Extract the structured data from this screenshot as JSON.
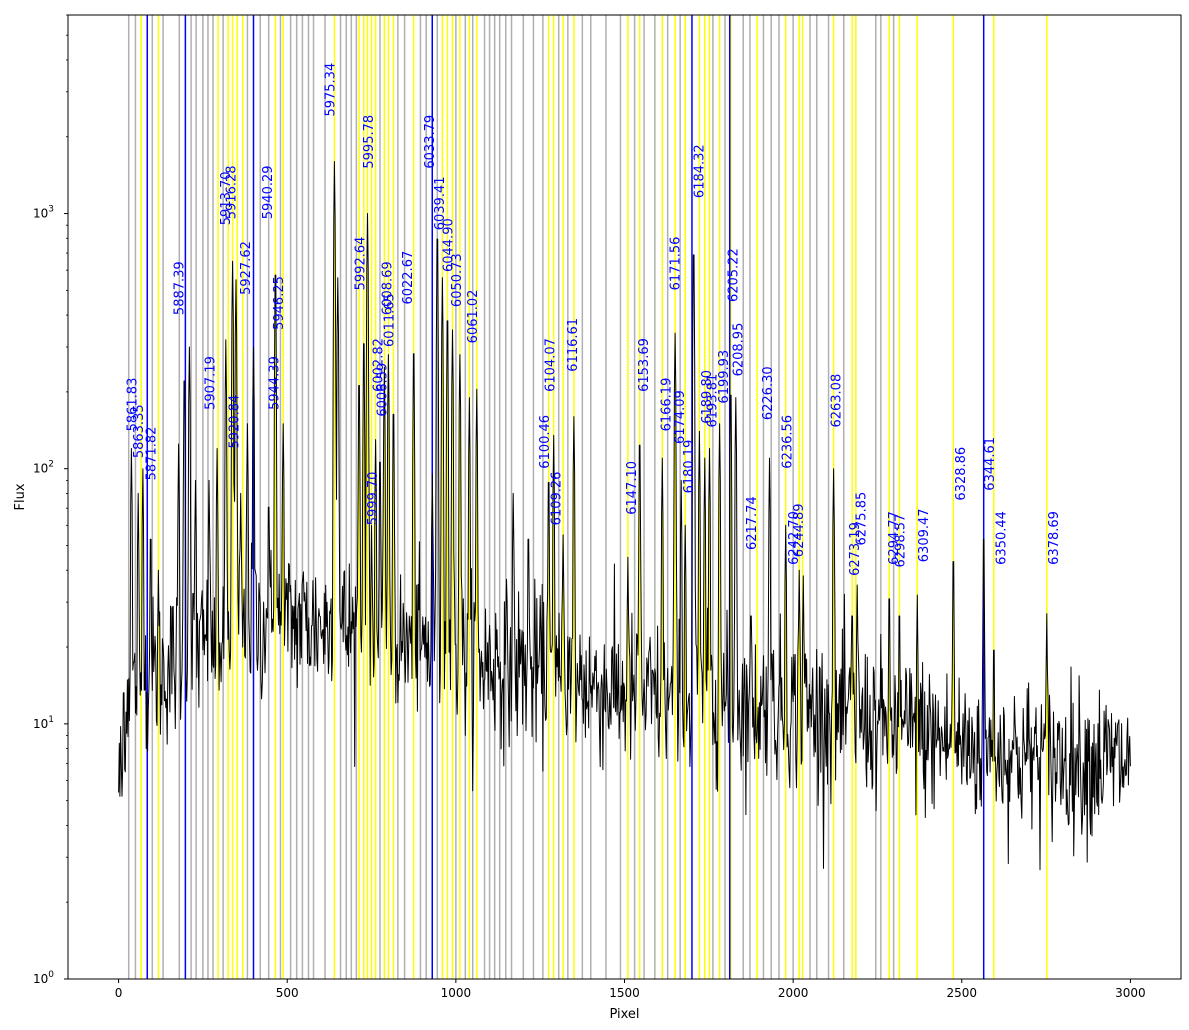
{
  "chart_data": {
    "type": "line",
    "title": "",
    "xlabel": "Pixel",
    "ylabel": "Flux",
    "xlim": [
      -150,
      3150
    ],
    "ylim": [
      1,
      6000
    ],
    "yscale": "log",
    "x_ticks": [
      0,
      500,
      1000,
      1500,
      2000,
      2500,
      3000
    ],
    "y_ticks": [
      {
        "value": 1,
        "label": "10",
        "exp": "0"
      },
      {
        "value": 10,
        "label": "10",
        "exp": "1"
      },
      {
        "value": 100,
        "label": "10",
        "exp": "2"
      },
      {
        "value": 1000,
        "label": "10",
        "exp": "3"
      }
    ],
    "grid": false,
    "legend": "none",
    "colors": {
      "spectrum": "#000000",
      "reference_line": "#0000ff",
      "detected_line": "#ffff00",
      "candidate_line": "#b0b0b0",
      "label": "#0000ff"
    },
    "reference_lines": [
      85,
      198,
      400,
      930,
      1700,
      1812,
      2565
    ],
    "detected_lines": [
      67,
      118,
      295,
      325,
      338,
      352,
      368,
      465,
      488,
      640,
      713,
      727,
      738,
      750,
      762,
      788,
      800,
      815,
      875,
      960,
      975,
      990,
      1012,
      1040,
      1062,
      1275,
      1290,
      1318,
      1350,
      1510,
      1545,
      1612,
      1650,
      1680,
      1722,
      1738,
      1752,
      1782,
      1815,
      1893,
      1978,
      2018,
      2028,
      2120,
      2175,
      2186,
      2285,
      2315,
      2368,
      2475,
      2595,
      2752
    ],
    "candidate_lines": [
      30,
      50,
      100,
      132,
      180,
      215,
      230,
      250,
      265,
      280,
      310,
      382,
      420,
      445,
      480,
      510,
      528,
      545,
      563,
      578,
      612,
      658,
      675,
      690,
      705,
      775,
      828,
      848,
      895,
      912,
      945,
      1000,
      1028,
      1050,
      1085,
      1100,
      1115,
      1130,
      1148,
      1165,
      1200,
      1230,
      1258,
      1305,
      1332,
      1375,
      1400,
      1445,
      1488,
      1530,
      1558,
      1590,
      1628,
      1665,
      1762,
      1798,
      1852,
      1872,
      1912,
      1935,
      1958,
      2000,
      2050,
      2070,
      2105,
      2150,
      2245,
      2260,
      2298
    ],
    "line_labels": [
      {
        "x": 38,
        "y": 140,
        "text": "5861.83"
      },
      {
        "x": 58,
        "y": 110,
        "text": "5863.35"
      },
      {
        "x": 95,
        "y": 90,
        "text": "5871.82"
      },
      {
        "x": 178,
        "y": 400,
        "text": "5887.39"
      },
      {
        "x": 270,
        "y": 170,
        "text": "5907.19"
      },
      {
        "x": 315,
        "y": 900,
        "text": "5913.70"
      },
      {
        "x": 332,
        "y": 950,
        "text": "5916.28"
      },
      {
        "x": 340,
        "y": 120,
        "text": "5920.84"
      },
      {
        "x": 375,
        "y": 480,
        "text": "5927.62"
      },
      {
        "x": 440,
        "y": 950,
        "text": "5940.29"
      },
      {
        "x": 460,
        "y": 170,
        "text": "5944.39"
      },
      {
        "x": 472,
        "y": 350,
        "text": "5946.25"
      },
      {
        "x": 625,
        "y": 2400,
        "text": "5975.34"
      },
      {
        "x": 715,
        "y": 500,
        "text": "5992.64"
      },
      {
        "x": 740,
        "y": 1500,
        "text": "5995.78"
      },
      {
        "x": 752,
        "y": 60,
        "text": "5999.70"
      },
      {
        "x": 768,
        "y": 200,
        "text": "6002.82"
      },
      {
        "x": 780,
        "y": 160,
        "text": "6006.59"
      },
      {
        "x": 795,
        "y": 400,
        "text": "6008.69"
      },
      {
        "x": 800,
        "y": 300,
        "text": "6011.65"
      },
      {
        "x": 855,
        "y": 440,
        "text": "6022.67"
      },
      {
        "x": 920,
        "y": 1500,
        "text": "6033.79"
      },
      {
        "x": 950,
        "y": 860,
        "text": "6039.41"
      },
      {
        "x": 975,
        "y": 590,
        "text": "6044.90"
      },
      {
        "x": 1000,
        "y": 430,
        "text": "6050.73"
      },
      {
        "x": 1048,
        "y": 310,
        "text": "6061.02"
      },
      {
        "x": 1262,
        "y": 100,
        "text": "6100.46"
      },
      {
        "x": 1278,
        "y": 200,
        "text": "6104.07"
      },
      {
        "x": 1295,
        "y": 60,
        "text": "6109.26"
      },
      {
        "x": 1345,
        "y": 240,
        "text": "6116.61"
      },
      {
        "x": 1520,
        "y": 66,
        "text": "6147.10"
      },
      {
        "x": 1555,
        "y": 200,
        "text": "6153.69"
      },
      {
        "x": 1622,
        "y": 140,
        "text": "6166.19"
      },
      {
        "x": 1648,
        "y": 500,
        "text": "6171.56"
      },
      {
        "x": 1662,
        "y": 125,
        "text": "6174.09"
      },
      {
        "x": 1688,
        "y": 80,
        "text": "6180.19"
      },
      {
        "x": 1720,
        "y": 1150,
        "text": "6184.32"
      },
      {
        "x": 1742,
        "y": 150,
        "text": "6189.80"
      },
      {
        "x": 1758,
        "y": 145,
        "text": "6193.81"
      },
      {
        "x": 1792,
        "y": 180,
        "text": "6199.93"
      },
      {
        "x": 1820,
        "y": 450,
        "text": "6205.22"
      },
      {
        "x": 1835,
        "y": 230,
        "text": "6208.95"
      },
      {
        "x": 1875,
        "y": 48,
        "text": "6217.74"
      },
      {
        "x": 1922,
        "y": 155,
        "text": "6226.30"
      },
      {
        "x": 1980,
        "y": 100,
        "text": "6236.56"
      },
      {
        "x": 2000,
        "y": 42,
        "text": "6242.70"
      },
      {
        "x": 2015,
        "y": 45,
        "text": "6244.89"
      },
      {
        "x": 2125,
        "y": 145,
        "text": "6263.08"
      },
      {
        "x": 2180,
        "y": 38,
        "text": "6273.19"
      },
      {
        "x": 2200,
        "y": 50,
        "text": "6275.85"
      },
      {
        "x": 2296,
        "y": 42,
        "text": "6294.77"
      },
      {
        "x": 2315,
        "y": 41,
        "text": "6298.57"
      },
      {
        "x": 2385,
        "y": 43,
        "text": "6309.47"
      },
      {
        "x": 2495,
        "y": 75,
        "text": "6328.86"
      },
      {
        "x": 2580,
        "y": 82,
        "text": "6344.61"
      },
      {
        "x": 2615,
        "y": 42,
        "text": "6350.44"
      },
      {
        "x": 2770,
        "y": 42,
        "text": "6378.69"
      }
    ],
    "peaks": [
      {
        "x": 15,
        "y": 15
      },
      {
        "x": 38,
        "y": 120
      },
      {
        "x": 58,
        "y": 80
      },
      {
        "x": 72,
        "y": 100
      },
      {
        "x": 95,
        "y": 60
      },
      {
        "x": 118,
        "y": 40
      },
      {
        "x": 178,
        "y": 125
      },
      {
        "x": 195,
        "y": 250
      },
      {
        "x": 210,
        "y": 300
      },
      {
        "x": 228,
        "y": 90
      },
      {
        "x": 268,
        "y": 90
      },
      {
        "x": 292,
        "y": 120
      },
      {
        "x": 318,
        "y": 320
      },
      {
        "x": 338,
        "y": 650
      },
      {
        "x": 348,
        "y": 550
      },
      {
        "x": 362,
        "y": 80
      },
      {
        "x": 382,
        "y": 150
      },
      {
        "x": 400,
        "y": 300
      },
      {
        "x": 445,
        "y": 80
      },
      {
        "x": 465,
        "y": 650
      },
      {
        "x": 488,
        "y": 150
      },
      {
        "x": 545,
        "y": 40
      },
      {
        "x": 640,
        "y": 1600
      },
      {
        "x": 650,
        "y": 560
      },
      {
        "x": 713,
        "y": 240
      },
      {
        "x": 727,
        "y": 350
      },
      {
        "x": 738,
        "y": 1000
      },
      {
        "x": 750,
        "y": 60
      },
      {
        "x": 762,
        "y": 130
      },
      {
        "x": 775,
        "y": 120
      },
      {
        "x": 788,
        "y": 250
      },
      {
        "x": 800,
        "y": 280
      },
      {
        "x": 815,
        "y": 185
      },
      {
        "x": 875,
        "y": 320
      },
      {
        "x": 930,
        "y": 95
      },
      {
        "x": 945,
        "y": 900
      },
      {
        "x": 960,
        "y": 560
      },
      {
        "x": 975,
        "y": 430
      },
      {
        "x": 990,
        "y": 350
      },
      {
        "x": 1012,
        "y": 280
      },
      {
        "x": 1040,
        "y": 190
      },
      {
        "x": 1062,
        "y": 205
      },
      {
        "x": 1170,
        "y": 80
      },
      {
        "x": 1215,
        "y": 60
      },
      {
        "x": 1275,
        "y": 100
      },
      {
        "x": 1290,
        "y": 135
      },
      {
        "x": 1318,
        "y": 55
      },
      {
        "x": 1350,
        "y": 160
      },
      {
        "x": 1510,
        "y": 45
      },
      {
        "x": 1545,
        "y": 140
      },
      {
        "x": 1612,
        "y": 110
      },
      {
        "x": 1650,
        "y": 340
      },
      {
        "x": 1668,
        "y": 90
      },
      {
        "x": 1680,
        "y": 60
      },
      {
        "x": 1705,
        "y": 780
      },
      {
        "x": 1722,
        "y": 140
      },
      {
        "x": 1738,
        "y": 110
      },
      {
        "x": 1752,
        "y": 120
      },
      {
        "x": 1782,
        "y": 150
      },
      {
        "x": 1815,
        "y": 220
      },
      {
        "x": 1830,
        "y": 190
      },
      {
        "x": 1875,
        "y": 30
      },
      {
        "x": 1930,
        "y": 110
      },
      {
        "x": 1978,
        "y": 60
      },
      {
        "x": 2018,
        "y": 40
      },
      {
        "x": 2030,
        "y": 38
      },
      {
        "x": 2120,
        "y": 100
      },
      {
        "x": 2175,
        "y": 30
      },
      {
        "x": 2190,
        "y": 35
      },
      {
        "x": 2285,
        "y": 35
      },
      {
        "x": 2315,
        "y": 30
      },
      {
        "x": 2368,
        "y": 32
      },
      {
        "x": 2475,
        "y": 49
      },
      {
        "x": 2565,
        "y": 60
      },
      {
        "x": 2595,
        "y": 22
      },
      {
        "x": 2752,
        "y": 27
      }
    ]
  }
}
